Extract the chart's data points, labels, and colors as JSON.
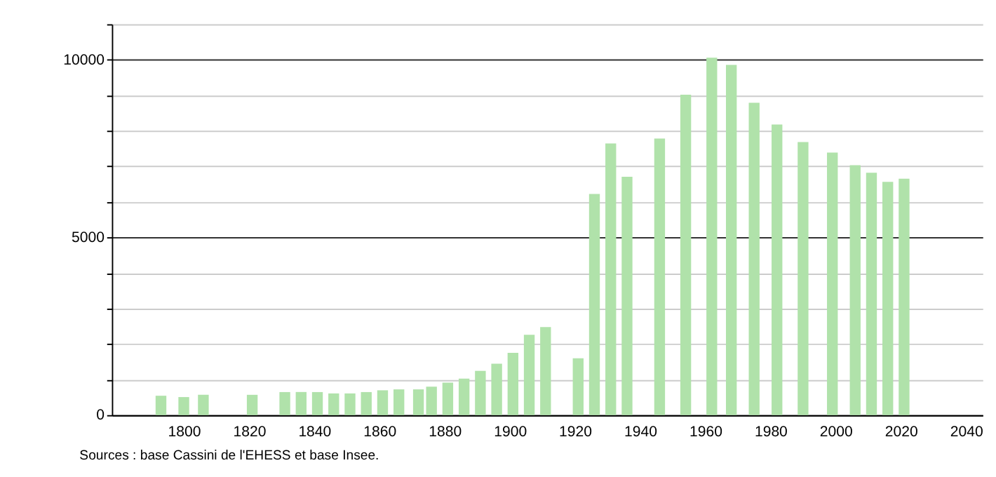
{
  "chart_data": {
    "type": "bar",
    "x": [
      1793,
      1800,
      1806,
      1821,
      1831,
      1836,
      1841,
      1846,
      1851,
      1856,
      1861,
      1866,
      1872,
      1876,
      1881,
      1886,
      1891,
      1896,
      1901,
      1906,
      1911,
      1921,
      1926,
      1931,
      1936,
      1946,
      1954,
      1962,
      1968,
      1975,
      1982,
      1990,
      1999,
      2006,
      2011,
      2016,
      2021
    ],
    "values": [
      545,
      507,
      571,
      571,
      648,
      650,
      648,
      610,
      610,
      648,
      698,
      724,
      724,
      800,
      914,
      1029,
      1245,
      1448,
      1752,
      2260,
      2476,
      1600,
      6222,
      7645,
      6705,
      7783,
      9016,
      10057,
      9854,
      8788,
      8178,
      7683,
      7390,
      7035,
      6819,
      6565,
      6654
    ],
    "color": "#b0e2aa",
    "xlim": [
      1780,
      2043
    ],
    "xticks": [
      1800,
      1820,
      1840,
      1860,
      1880,
      1900,
      1920,
      1940,
      1960,
      1980,
      2000,
      2020,
      2040
    ],
    "ylim": [
      0,
      11000
    ],
    "yticks": [
      0,
      {
        "value": 1000,
        "label": null
      },
      {
        "value": 2000,
        "label": null
      },
      {
        "value": 3000,
        "label": null
      },
      {
        "value": 4000,
        "label": null
      },
      5000,
      {
        "value": 6000,
        "label": null
      },
      {
        "value": 7000,
        "label": null
      },
      {
        "value": 8000,
        "label": null
      },
      {
        "value": 9000,
        "label": null
      },
      10000,
      {
        "value": 11000,
        "label": null
      }
    ],
    "grid": "y",
    "annotations": [
      "Sources : base Cassini de l'EHESS et base Insee."
    ]
  }
}
